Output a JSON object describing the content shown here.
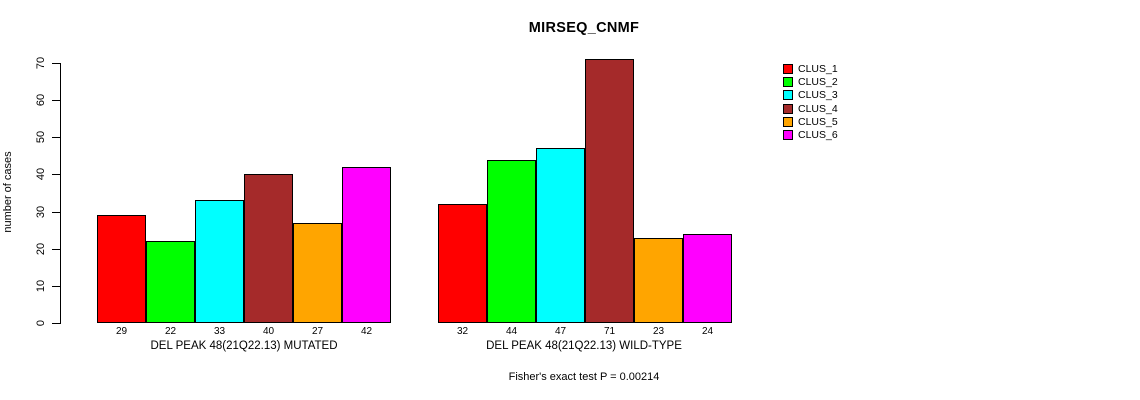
{
  "chart_data": {
    "type": "bar",
    "title": "MIRSEQ_CNMF",
    "ylabel": "number of cases",
    "ylim": [
      0,
      70
    ],
    "yticks": [
      0,
      10,
      20,
      30,
      40,
      50,
      60,
      70
    ],
    "grid": false,
    "legend_position": "right",
    "bar_value_labels_shown": true,
    "categories": [
      "DEL PEAK 48(21Q22.13) MUTATED",
      "DEL PEAK 48(21Q22.13) WILD-TYPE"
    ],
    "series": [
      {
        "name": "CLUS_1",
        "color": "#FF0000",
        "values": [
          29,
          32
        ]
      },
      {
        "name": "CLUS_2",
        "color": "#00FF00",
        "values": [
          22,
          44
        ]
      },
      {
        "name": "CLUS_3",
        "color": "#00FFFF",
        "values": [
          33,
          47
        ]
      },
      {
        "name": "CLUS_4",
        "color": "#A52A2A",
        "values": [
          40,
          71
        ]
      },
      {
        "name": "CLUS_5",
        "color": "#FFA500",
        "values": [
          27,
          23
        ]
      },
      {
        "name": "CLUS_6",
        "color": "#FF00FF",
        "values": [
          42,
          24
        ]
      }
    ],
    "footnote": "Fisher's exact test P = 0.00214"
  }
}
